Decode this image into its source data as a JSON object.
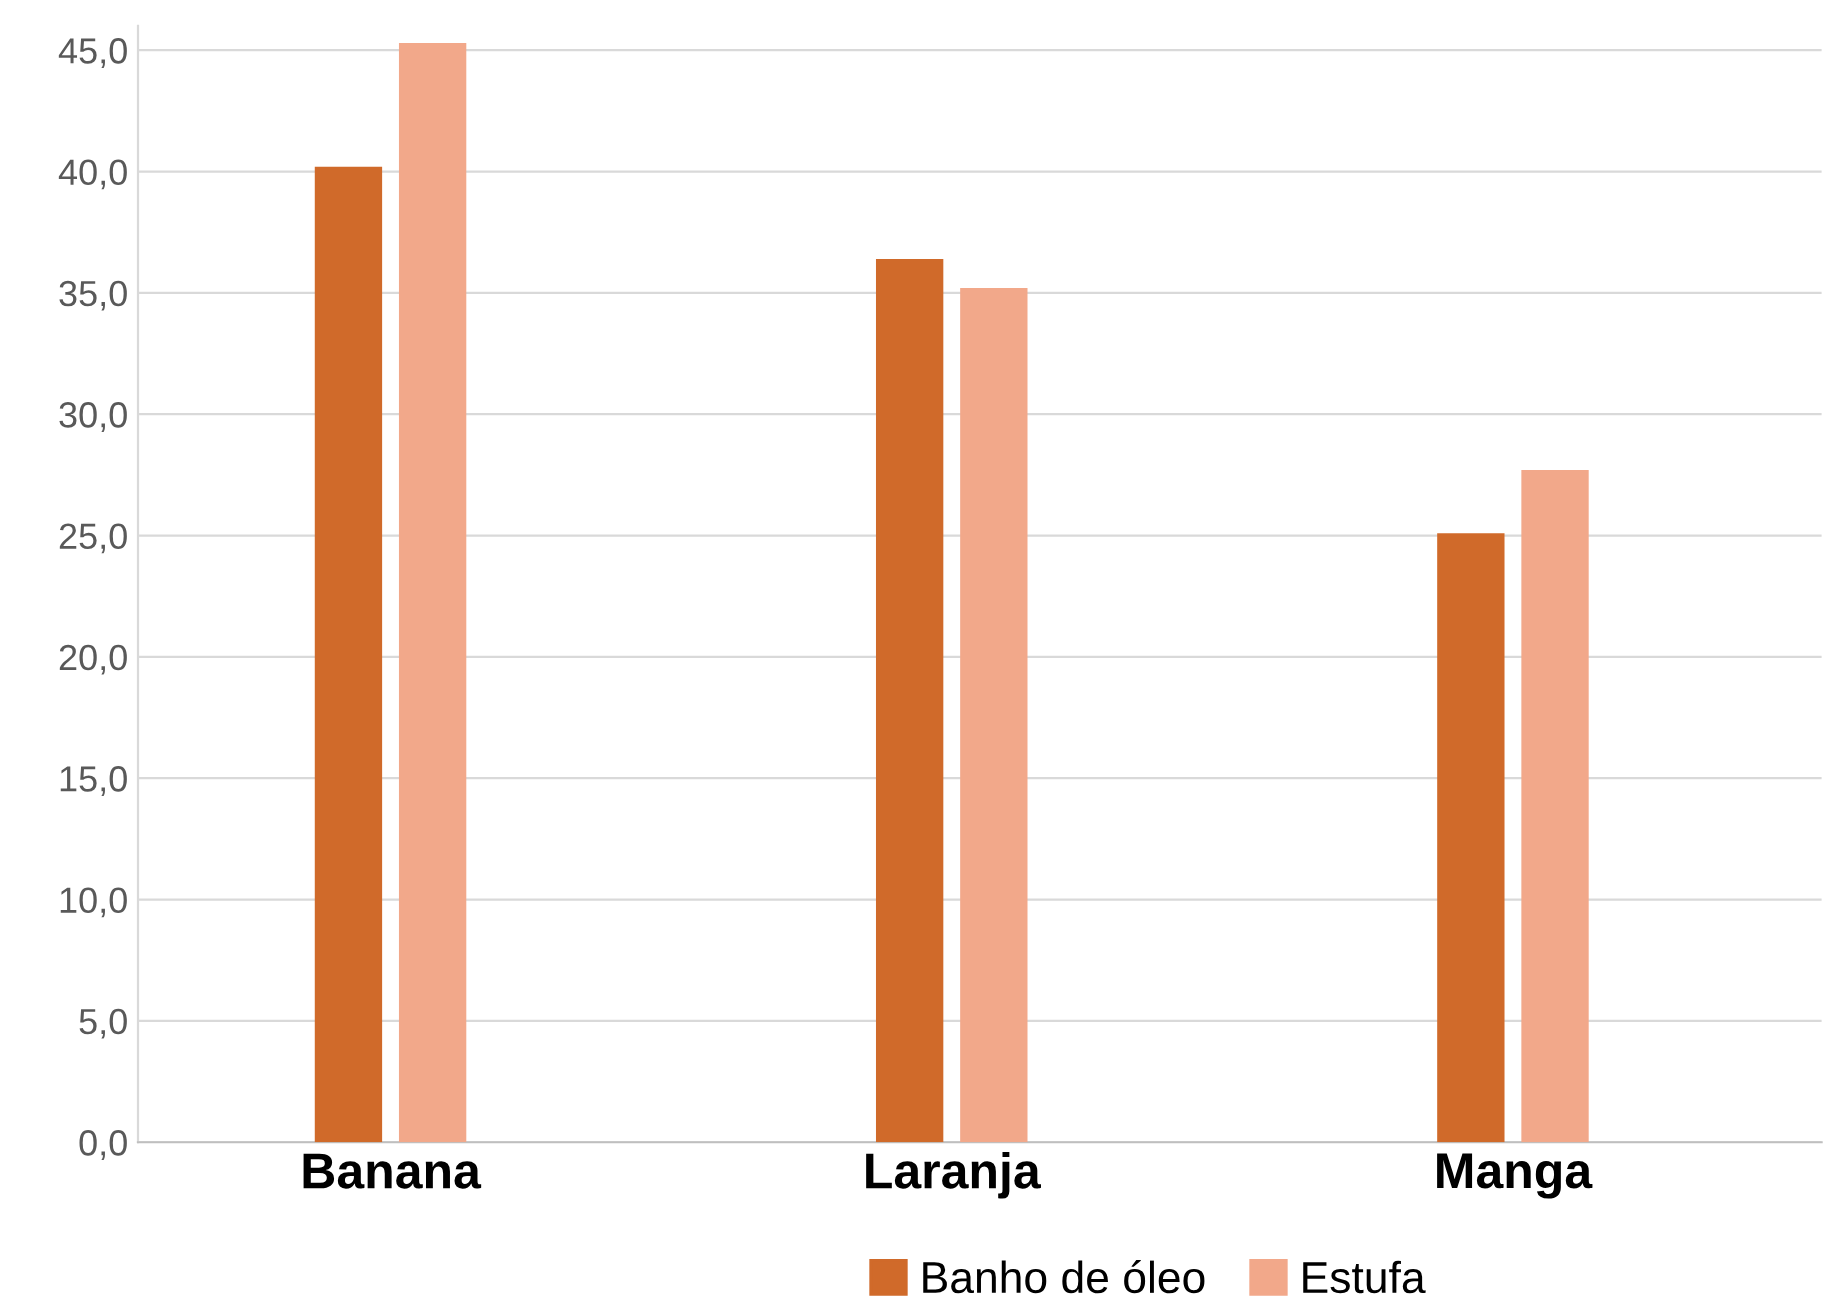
{
  "chart_data": {
    "type": "bar",
    "categories": [
      "Banana",
      "Laranja",
      "Manga"
    ],
    "series": [
      {
        "name": "Banho de óleo",
        "color": "#d06a2a",
        "values": [
          40.2,
          36.4,
          25.1
        ]
      },
      {
        "name": "Estufa",
        "color": "#f2a88a",
        "values": [
          45.3,
          35.2,
          27.7
        ]
      }
    ],
    "ylim": [
      0,
      46
    ],
    "yticks": [
      {
        "value": 0,
        "label": "0,0"
      },
      {
        "value": 5,
        "label": "5,0"
      },
      {
        "value": 10,
        "label": "10,0"
      },
      {
        "value": 15,
        "label": "15,0"
      },
      {
        "value": 20,
        "label": "20,0"
      },
      {
        "value": 25,
        "label": "25,0"
      },
      {
        "value": 30,
        "label": "30,0"
      },
      {
        "value": 35,
        "label": "35,0"
      },
      {
        "value": 40,
        "label": "40,0"
      },
      {
        "value": 45,
        "label": "45,0"
      }
    ],
    "grid": "y",
    "legend": "bottom"
  }
}
